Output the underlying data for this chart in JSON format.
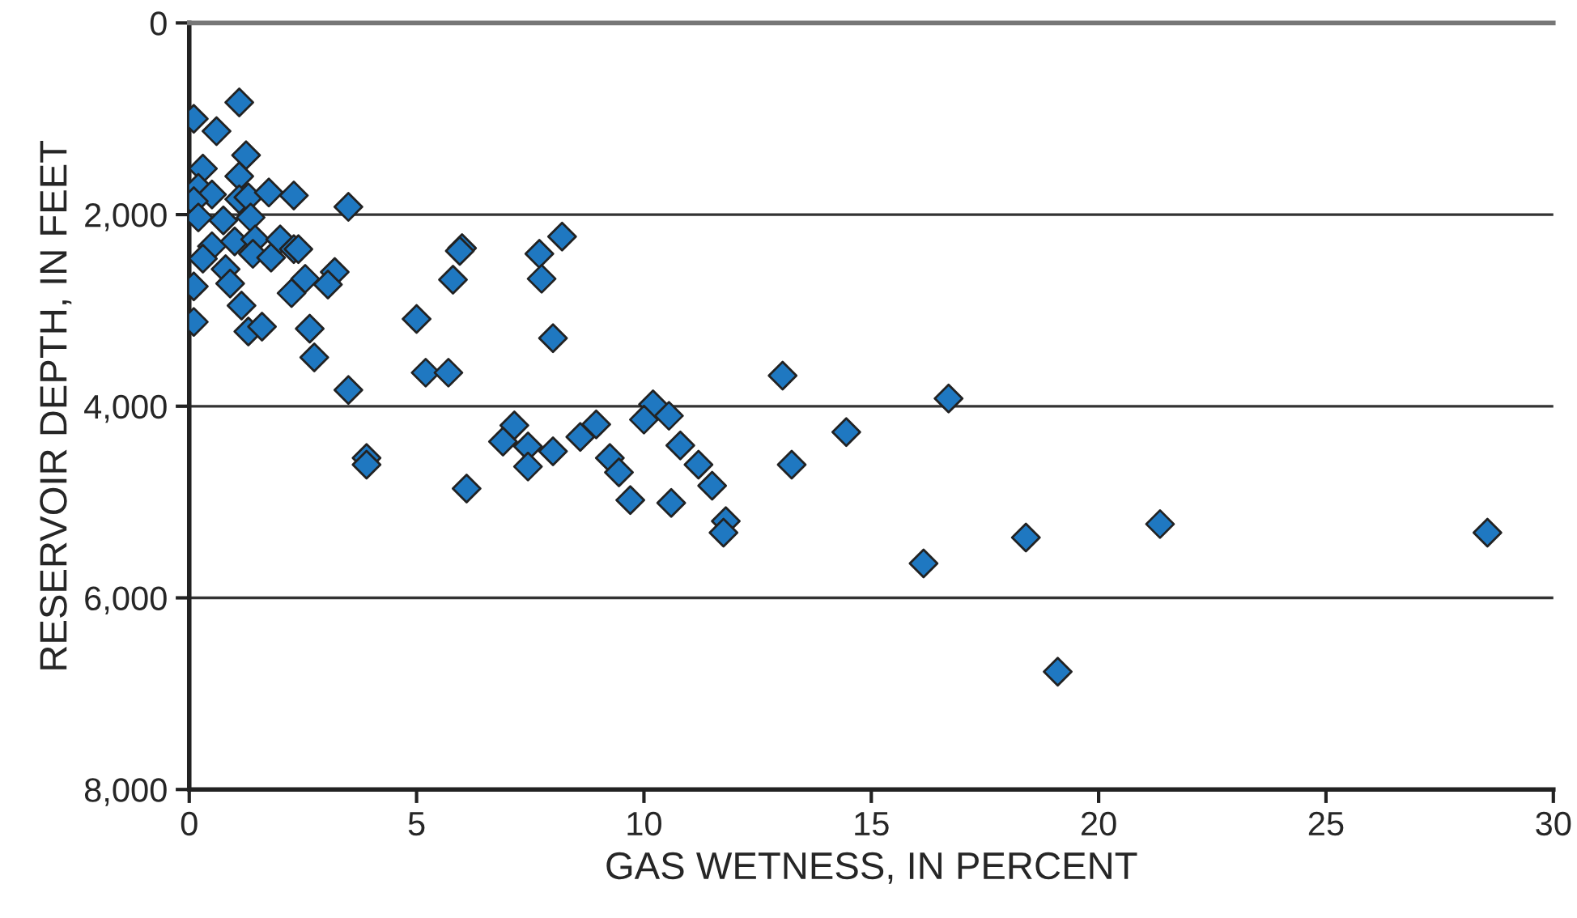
{
  "chart_data": {
    "type": "scatter",
    "xlabel": "GAS WETNESS, IN PERCENT",
    "ylabel": "RESERVOIR DEPTH, IN FEET",
    "marker": "diamond",
    "grid": "y",
    "xlim": [
      0,
      30
    ],
    "xticks": [
      0,
      5,
      10,
      15,
      20,
      25,
      30
    ],
    "ylim": [
      8000,
      0
    ],
    "yticks": [
      0,
      {
        "value": 2000,
        "label": "2,000"
      },
      {
        "value": 4000,
        "label": "4,000"
      },
      {
        "value": 6000,
        "label": "6,000"
      },
      {
        "value": 8000,
        "label": "8,000"
      }
    ],
    "series": [
      {
        "color": "#1f78c1",
        "x": [
          0.1,
          1.1,
          0.6,
          1.25,
          0.3,
          1.1,
          0.2,
          0.5,
          0.1,
          1.1,
          1.3,
          1.75,
          2.3,
          3.5,
          0.2,
          0.75,
          1.35,
          0.5,
          1.0,
          1.45,
          0.3,
          1.4,
          1.8,
          2.0,
          2.3,
          2.4,
          0.1,
          0.8,
          0.9,
          2.55,
          2.25,
          3.2,
          3.05,
          1.15,
          1.3,
          1.6,
          0.1,
          2.65,
          2.75,
          3.5,
          5.0,
          5.2,
          5.7,
          6.0,
          5.95,
          5.8,
          7.7,
          8.2,
          7.75,
          8.0,
          3.9,
          3.9,
          6.1,
          7.15,
          6.9,
          7.45,
          7.45,
          8.0,
          8.6,
          8.95,
          10.2,
          10.0,
          10.55,
          10.8,
          9.25,
          9.45,
          9.7,
          11.2,
          11.5,
          10.6,
          11.8,
          11.75,
          13.25,
          13.05,
          14.45,
          16.7,
          16.15,
          18.4,
          19.1,
          21.35,
          28.55
        ],
        "values": [
          1000,
          830,
          1130,
          1380,
          1520,
          1600,
          1720,
          1790,
          1860,
          1840,
          1820,
          1770,
          1800,
          1920,
          2030,
          2060,
          2030,
          2330,
          2280,
          2260,
          2460,
          2410,
          2450,
          2260,
          2360,
          2360,
          2750,
          2570,
          2720,
          2670,
          2820,
          2600,
          2730,
          2950,
          3220,
          3170,
          3120,
          3190,
          3490,
          3830,
          3090,
          3650,
          3650,
          2350,
          2380,
          2680,
          2410,
          2230,
          2670,
          3290,
          4540,
          4610,
          4860,
          4200,
          4370,
          4420,
          4630,
          4470,
          4320,
          4190,
          3980,
          4140,
          4100,
          4410,
          4540,
          4690,
          4980,
          4610,
          4830,
          5010,
          5200,
          5320,
          4610,
          3680,
          4270,
          3920,
          5640,
          5370,
          6770,
          5230,
          5320
        ]
      }
    ]
  }
}
